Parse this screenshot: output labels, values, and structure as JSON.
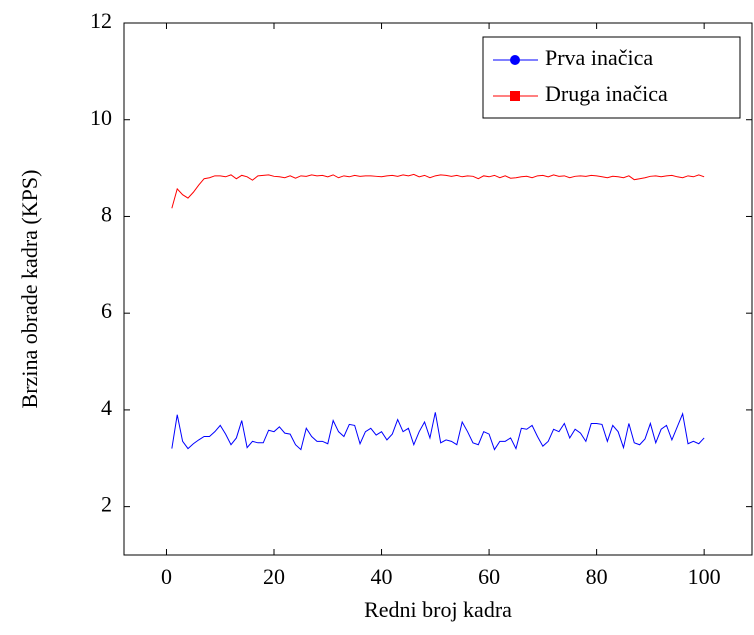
{
  "chart_data": {
    "type": "line",
    "xlabel": "Redni broj kadra",
    "ylabel": "Brzina obrade kadra (KPS)",
    "x": [
      1,
      2,
      3,
      4,
      5,
      6,
      7,
      8,
      9,
      10,
      11,
      12,
      13,
      14,
      15,
      16,
      17,
      18,
      19,
      20,
      21,
      22,
      23,
      24,
      25,
      26,
      27,
      28,
      29,
      30,
      31,
      32,
      33,
      34,
      35,
      36,
      37,
      38,
      39,
      40,
      41,
      42,
      43,
      44,
      45,
      46,
      47,
      48,
      49,
      50,
      51,
      52,
      53,
      54,
      55,
      56,
      57,
      58,
      59,
      60,
      61,
      62,
      63,
      64,
      65,
      66,
      67,
      68,
      69,
      70,
      71,
      72,
      73,
      74,
      75,
      76,
      77,
      78,
      79,
      80,
      81,
      82,
      83,
      84,
      85,
      86,
      87,
      88,
      89,
      90,
      91,
      92,
      93,
      94,
      95,
      96,
      97,
      98,
      99,
      100
    ],
    "series": [
      {
        "name": "Prva inačica",
        "color": "#0000ff",
        "marker": "circle",
        "values": [
          3.2,
          3.9,
          3.35,
          3.2,
          3.3,
          3.38,
          3.45,
          3.45,
          3.55,
          3.68,
          3.5,
          3.28,
          3.42,
          3.78,
          3.22,
          3.35,
          3.32,
          3.32,
          3.58,
          3.55,
          3.65,
          3.52,
          3.5,
          3.28,
          3.18,
          3.62,
          3.45,
          3.35,
          3.35,
          3.3,
          3.78,
          3.55,
          3.45,
          3.7,
          3.68,
          3.3,
          3.55,
          3.62,
          3.48,
          3.55,
          3.38,
          3.5,
          3.8,
          3.55,
          3.62,
          3.28,
          3.55,
          3.75,
          3.42,
          3.95,
          3.32,
          3.38,
          3.35,
          3.28,
          3.75,
          3.55,
          3.32,
          3.28,
          3.55,
          3.5,
          3.18,
          3.35,
          3.35,
          3.42,
          3.2,
          3.62,
          3.6,
          3.68,
          3.45,
          3.25,
          3.35,
          3.6,
          3.55,
          3.72,
          3.42,
          3.6,
          3.52,
          3.35,
          3.72,
          3.72,
          3.7,
          3.35,
          3.68,
          3.55,
          3.22,
          3.72,
          3.32,
          3.28,
          3.4,
          3.72,
          3.32,
          3.6,
          3.68,
          3.38,
          3.65,
          3.92,
          3.3,
          3.35,
          3.3,
          3.42
        ]
      },
      {
        "name": "Druga inačica",
        "color": "#ff0000",
        "marker": "square",
        "values": [
          8.17,
          8.57,
          8.45,
          8.38,
          8.5,
          8.65,
          8.78,
          8.8,
          8.84,
          8.84,
          8.82,
          8.86,
          8.78,
          8.85,
          8.82,
          8.75,
          8.84,
          8.85,
          8.86,
          8.83,
          8.82,
          8.8,
          8.84,
          8.79,
          8.84,
          8.83,
          8.86,
          8.84,
          8.85,
          8.82,
          8.86,
          8.8,
          8.84,
          8.82,
          8.85,
          8.83,
          8.84,
          8.84,
          8.83,
          8.82,
          8.84,
          8.85,
          8.83,
          8.86,
          8.84,
          8.87,
          8.82,
          8.85,
          8.8,
          8.84,
          8.86,
          8.85,
          8.83,
          8.85,
          8.82,
          8.84,
          8.83,
          8.78,
          8.84,
          8.82,
          8.85,
          8.8,
          8.84,
          8.79,
          8.8,
          8.82,
          8.83,
          8.8,
          8.84,
          8.85,
          8.82,
          8.86,
          8.83,
          8.84,
          8.8,
          8.83,
          8.84,
          8.83,
          8.85,
          8.84,
          8.82,
          8.8,
          8.83,
          8.82,
          8.8,
          8.84,
          8.76,
          8.78,
          8.8,
          8.83,
          8.84,
          8.82,
          8.84,
          8.85,
          8.82,
          8.8,
          8.84,
          8.82,
          8.86,
          8.82
        ]
      }
    ],
    "xlim": [
      -7.9,
      108.9
    ],
    "ylim": [
      1,
      12
    ],
    "xticks": [
      0,
      20,
      40,
      60,
      80,
      100
    ],
    "yticks": [
      2,
      4,
      6,
      8,
      10,
      12
    ],
    "legend": "north east"
  }
}
